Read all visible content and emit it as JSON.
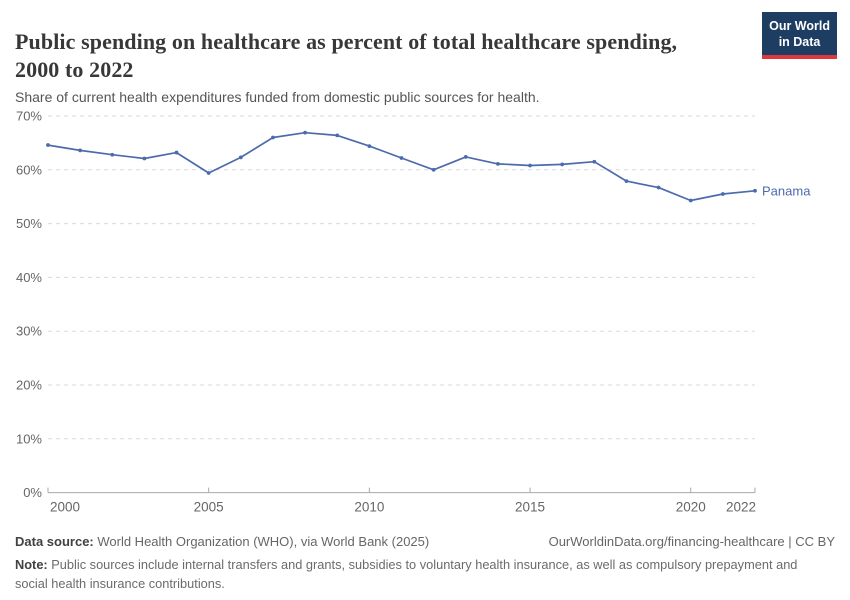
{
  "header": {
    "title": "Public spending on healthcare as percent of total healthcare spending, 2000 to 2022",
    "subtitle": "Share of current health expenditures funded from domestic public sources for health.",
    "logo": {
      "line1": "Our World",
      "line2": "in Data"
    }
  },
  "chart_data": {
    "type": "line",
    "title": "Public spending on healthcare as percent of total healthcare spending, 2000 to 2022",
    "xlabel": "",
    "ylabel": "",
    "xlim": [
      2000,
      2022
    ],
    "ylim": [
      0,
      70
    ],
    "x_ticks": [
      2000,
      2005,
      2010,
      2015,
      2020,
      2022
    ],
    "y_ticks": [
      0,
      10,
      20,
      30,
      40,
      50,
      60,
      70
    ],
    "y_tick_suffix": "%",
    "grid": "horizontal-dashed",
    "legend_position": "end-of-line-label",
    "series": [
      {
        "name": "Panama",
        "color": "#4c6bac",
        "x": [
          2000,
          2001,
          2002,
          2003,
          2004,
          2005,
          2006,
          2007,
          2008,
          2009,
          2010,
          2011,
          2012,
          2013,
          2014,
          2015,
          2016,
          2017,
          2018,
          2019,
          2020,
          2021,
          2022
        ],
        "values": [
          64.6,
          63.6,
          62.8,
          62.1,
          63.2,
          59.4,
          62.3,
          66.0,
          66.9,
          66.4,
          64.4,
          62.2,
          60.0,
          62.4,
          61.1,
          60.8,
          61.0,
          61.5,
          57.9,
          56.7,
          54.3,
          55.5,
          56.1
        ]
      }
    ]
  },
  "footer": {
    "data_source_label": "Data source:",
    "data_source_text": " World Health Organization (WHO), via World Bank (2025)",
    "link_text": "OurWorldinData.org/financing-healthcare",
    "separator": " | ",
    "license_text": "CC BY",
    "note_label": "Note:",
    "note_text": " Public sources include internal transfers and grants, subsidies to voluntary health insurance, as well as compulsory prepayment and social health insurance contributions."
  },
  "colors": {
    "line": "#4c6bac",
    "grid": "#dadada",
    "axis": "#a8a8a8",
    "tick_label": "#666666",
    "title": "#383838",
    "logo_bg": "#1d3d63",
    "logo_accent": "#e0373b"
  }
}
